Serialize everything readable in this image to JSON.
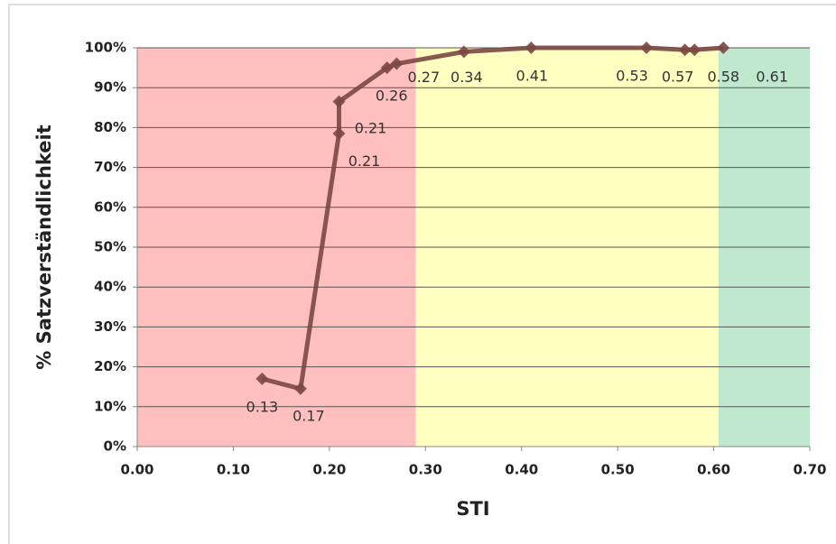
{
  "chart_data": {
    "type": "line",
    "x_label": "STI",
    "y_label": "% Satzverständlichkeit",
    "x": [
      0.13,
      0.17,
      0.21,
      0.21,
      0.26,
      0.27,
      0.34,
      0.41,
      0.53,
      0.57,
      0.58,
      0.61
    ],
    "series": [
      {
        "color": "#7b4843",
        "values": [
          17,
          14.5,
          78.5,
          86.5,
          95,
          96,
          99,
          100,
          100,
          99.5,
          99.5,
          100
        ]
      }
    ],
    "xlim": [
      0,
      0.7
    ],
    "xticks": [
      {
        "value": 0,
        "label": "0.00"
      },
      {
        "value": 0.1,
        "label": "0.10"
      },
      {
        "value": 0.2,
        "label": "0.20"
      },
      {
        "value": 0.3,
        "label": "0.30"
      },
      {
        "value": 0.4,
        "label": "0.40"
      },
      {
        "value": 0.5,
        "label": "0.50"
      },
      {
        "value": 0.6,
        "label": "0.60"
      },
      {
        "value": 0.7,
        "label": "0.70"
      }
    ],
    "ylim": [
      0,
      100
    ],
    "yticks": [
      {
        "value": 0,
        "label": "0%"
      },
      {
        "value": 10,
        "label": "10%"
      },
      {
        "value": 20,
        "label": "20%"
      },
      {
        "value": 30,
        "label": "30%"
      },
      {
        "value": 40,
        "label": "40%"
      },
      {
        "value": 50,
        "label": "50%"
      },
      {
        "value": 60,
        "label": "60%"
      },
      {
        "value": 70,
        "label": "70%"
      },
      {
        "value": 80,
        "label": "80%"
      },
      {
        "value": 90,
        "label": "90%"
      },
      {
        "value": 100,
        "label": "100%"
      }
    ],
    "grid": true,
    "bands": [
      {
        "from": 0,
        "to": 0.29,
        "color": "#ffbfbf"
      },
      {
        "from": 0.29,
        "to": 0.605,
        "color": "#ffffbf"
      },
      {
        "from": 0.605,
        "to": 0.7,
        "color": "#bfe8cf"
      }
    ]
  }
}
